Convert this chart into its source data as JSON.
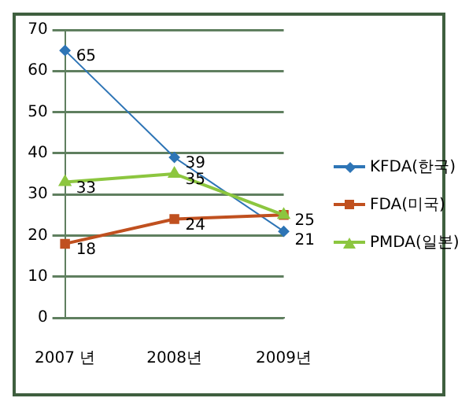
{
  "chart_data": {
    "type": "line",
    "categories": [
      "2007 년",
      "2008년",
      "2009년"
    ],
    "series": [
      {
        "name": "KFDA(한국)",
        "color": "#2e75b6",
        "values": [
          65,
          39,
          21
        ],
        "marker": "diamond",
        "value_labels": [
          "65",
          "39",
          "21"
        ]
      },
      {
        "name": "FDA(미국)",
        "color": "#c0501f",
        "values": [
          18,
          24,
          25
        ],
        "marker": "square",
        "value_labels": [
          "18",
          "24",
          "25"
        ]
      },
      {
        "name": "PMDA(일본)",
        "color": "#8cc63f",
        "values": [
          33,
          35,
          25
        ],
        "marker": "triangle",
        "value_labels": [
          "33",
          "35",
          null
        ]
      }
    ],
    "ylim": [
      0,
      70
    ],
    "yticks": [
      0,
      10,
      20,
      30,
      40,
      50,
      60,
      70
    ],
    "grid": "y",
    "legend": "right"
  }
}
